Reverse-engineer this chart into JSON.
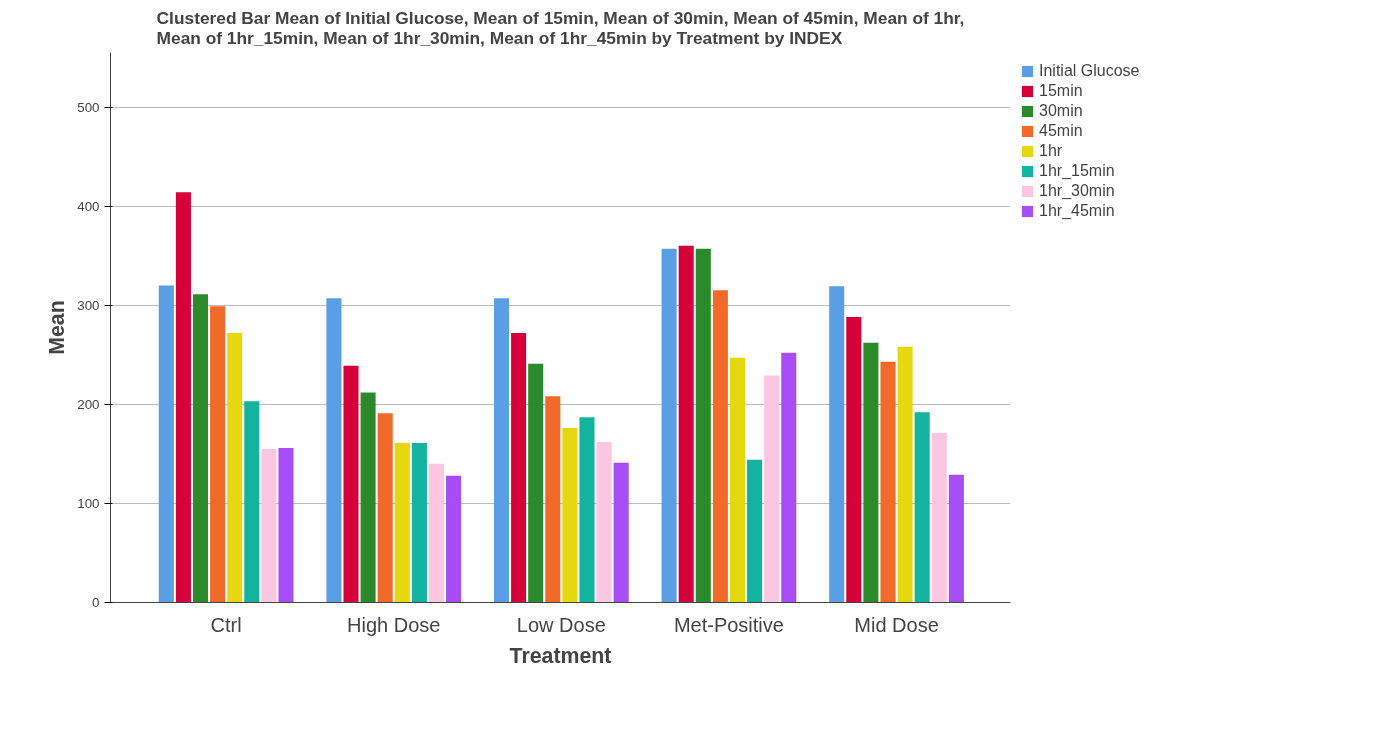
{
  "chart_data": {
    "type": "bar",
    "title": "Clustered Bar Mean of Initial Glucose, Mean of 15min, Mean of 30min, Mean of 45min, Mean of 1hr, Mean of 1hr_15min, Mean of 1hr_30min, Mean of 1hr_45min by Treatment by INDEX",
    "xlabel": "Treatment",
    "ylabel": "Mean",
    "categories": [
      "Ctrl",
      "High Dose",
      "Low Dose",
      "Met-Positive",
      "Mid Dose"
    ],
    "series": [
      {
        "name": "Initial Glucose",
        "color": "#5a9ee6",
        "values": [
          320,
          307,
          307,
          357,
          319
        ]
      },
      {
        "name": "15min",
        "color": "#d5003a",
        "values": [
          414,
          239,
          272,
          360,
          288
        ]
      },
      {
        "name": "30min",
        "color": "#2b8a2b",
        "values": [
          311,
          212,
          241,
          357,
          262
        ]
      },
      {
        "name": "45min",
        "color": "#f26a2a",
        "values": [
          299,
          191,
          208,
          315,
          243
        ]
      },
      {
        "name": "1hr",
        "color": "#e6d80e",
        "values": [
          272,
          161,
          176,
          247,
          258
        ]
      },
      {
        "name": "1hr_15min",
        "color": "#14b3a0",
        "values": [
          203,
          161,
          187,
          144,
          192
        ]
      },
      {
        "name": "1hr_30min",
        "color": "#fdc6e0",
        "values": [
          155,
          140,
          162,
          229,
          171
        ]
      },
      {
        "name": "1hr_45min",
        "color": "#a64df5",
        "values": [
          156,
          128,
          141,
          252,
          129
        ]
      }
    ],
    "ylim": [
      0,
      555
    ],
    "yticks": [
      0,
      100,
      200,
      300,
      400,
      500
    ],
    "grid": "y",
    "legend": "top right"
  }
}
